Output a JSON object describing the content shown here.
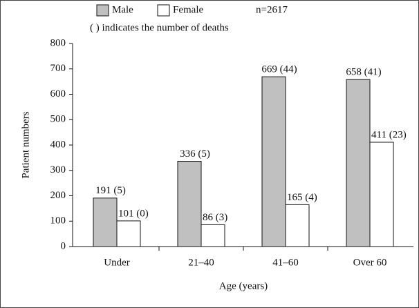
{
  "chart_data": {
    "type": "bar",
    "legend_note": "n=2617",
    "annotation": "( ) indicates the number of deaths",
    "y_label": "Patient numbers",
    "x_label": "Age (years)",
    "categories": [
      "Under",
      "21–40",
      "41–60",
      "Over 60"
    ],
    "series": [
      {
        "name": "Male",
        "color": "#c0c0c0",
        "values": [
          191,
          336,
          669,
          658
        ],
        "value_labels": [
          "191 (5)",
          "336 (5)",
          "669 (44)",
          "658 (41)"
        ]
      },
      {
        "name": "Female",
        "color": "#ffffff",
        "values": [
          101,
          86,
          165,
          411
        ],
        "value_labels": [
          "101 (0)",
          "86 (3)",
          "165 (4)",
          "411 (23)"
        ]
      }
    ],
    "ylim": [
      0,
      800
    ],
    "yticks": [
      0,
      100,
      200,
      300,
      400,
      500,
      600,
      700,
      800
    ],
    "grid": false
  }
}
